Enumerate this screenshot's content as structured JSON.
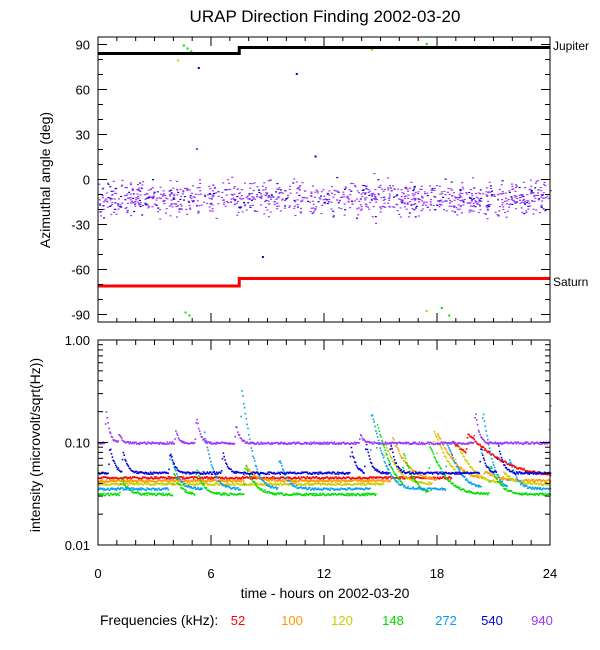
{
  "chart_data": [
    {
      "type": "scatter",
      "title": "URAP Direction Finding  2002-03-20",
      "xlabel": "",
      "ylabel": "Azimuthal angle (deg)",
      "xlim": [
        0,
        24
      ],
      "ylim": [
        -95,
        95
      ],
      "yticks": [
        90,
        60,
        30,
        0,
        -30,
        -60,
        -90
      ],
      "ytick_labels": [
        "90",
        "60",
        "30",
        "0",
        "-30",
        "-60",
        "-90"
      ],
      "reference_lines": [
        {
          "name": "Jupiter",
          "color": "#000000",
          "segments": [
            {
              "x": [
                0,
                7.5
              ],
              "y": 84
            },
            {
              "x": [
                7.5,
                24
              ],
              "y": 88
            }
          ]
        },
        {
          "name": "Saturn",
          "color": "#ff0000",
          "segments": [
            {
              "x": [
                0,
                7.5
              ],
              "y": -71
            },
            {
              "x": [
                7.5,
                24
              ],
              "y": -66
            }
          ]
        }
      ],
      "scatter_band": {
        "series": "940",
        "y_center": -12,
        "y_spread": 8
      },
      "sparse_points": [
        {
          "series": "148",
          "x": 4.5,
          "y": 90
        },
        {
          "series": "148",
          "x": 4.7,
          "y": 88
        },
        {
          "series": "148",
          "x": 4.9,
          "y": 86
        },
        {
          "series": "120",
          "x": 4.2,
          "y": 80
        },
        {
          "series": "540",
          "x": 5.3,
          "y": 75
        },
        {
          "series": "148",
          "x": 17.4,
          "y": 91
        },
        {
          "series": "120",
          "x": 14.5,
          "y": 87
        },
        {
          "series": "148",
          "x": 18.3,
          "y": 89
        },
        {
          "series": "540",
          "x": 10.5,
          "y": 71
        },
        {
          "series": "540",
          "x": 11.5,
          "y": 16
        },
        {
          "series": "940",
          "x": 5.2,
          "y": 21
        },
        {
          "series": "540",
          "x": 8.7,
          "y": -51
        },
        {
          "series": "148",
          "x": 4.8,
          "y": -90
        },
        {
          "series": "148",
          "x": 4.6,
          "y": -88
        },
        {
          "series": "148",
          "x": 18.2,
          "y": -85
        },
        {
          "series": "120",
          "x": 17.4,
          "y": -87
        },
        {
          "series": "148",
          "x": 18.6,
          "y": -90
        }
      ]
    },
    {
      "type": "line",
      "xlabel": "time - hours on 2002-03-20",
      "ylabel": "intensity (microvolt/sqrt(Hz))",
      "xlim": [
        0,
        24
      ],
      "ylim": [
        0.01,
        1.0
      ],
      "yscale": "log",
      "yticks": [
        1.0,
        0.1,
        0.01
      ],
      "ytick_labels": [
        "1.00",
        "0.10",
        "0.01"
      ],
      "xticks": [
        0,
        6,
        12,
        18,
        24
      ],
      "xtick_labels": [
        "0",
        "6",
        "12",
        "18",
        "24"
      ],
      "legend_title": "Frequencies (kHz):",
      "series": [
        {
          "name": "52",
          "color": "#ff0000",
          "base": 0.045,
          "peaks": [
            [
              18.8,
              0.1,
              1.5
            ],
            [
              19.6,
              0.09,
              1.3
            ]
          ]
        },
        {
          "name": "100",
          "color": "#ff9900",
          "base": 0.042,
          "peaks": [
            [
              7.8,
              0.06,
              0.4
            ],
            [
              15.6,
              0.11,
              0.6
            ],
            [
              18.0,
              0.12,
              0.7
            ],
            [
              20.5,
              0.05,
              0.6
            ]
          ]
        },
        {
          "name": "120",
          "color": "#cccc00",
          "base": 0.039,
          "peaks": [
            [
              15.2,
              0.1,
              0.5
            ],
            [
              17.8,
              0.13,
              0.6
            ],
            [
              19.0,
              0.09,
              0.6
            ],
            [
              21.5,
              0.05,
              0.5
            ]
          ]
        },
        {
          "name": "148",
          "color": "#00dd00",
          "base": 0.031,
          "peaks": [
            [
              1.2,
              0.045,
              0.3
            ],
            [
              4.0,
              0.05,
              0.3
            ],
            [
              5.2,
              0.055,
              0.3
            ],
            [
              7.8,
              0.06,
              0.4
            ],
            [
              14.8,
              0.15,
              0.5
            ],
            [
              16.2,
              0.07,
              0.4
            ],
            [
              17.6,
              0.09,
              0.6
            ],
            [
              20.8,
              0.06,
              0.4
            ]
          ]
        },
        {
          "name": "272",
          "color": "#00a0f0",
          "base": 0.035,
          "peaks": [
            [
              3.8,
              0.08,
              0.3
            ],
            [
              5.6,
              0.13,
              0.3
            ],
            [
              7.6,
              0.32,
              0.3
            ],
            [
              9.6,
              0.07,
              0.3
            ],
            [
              14.5,
              0.2,
              0.4
            ],
            [
              18.5,
              0.1,
              0.5
            ],
            [
              20.4,
              0.2,
              0.3
            ],
            [
              21.8,
              0.07,
              0.3
            ]
          ]
        },
        {
          "name": "540",
          "color": "#0000dd",
          "base": 0.05,
          "peaks": [
            [
              0.6,
              0.09,
              0.2
            ],
            [
              1.3,
              0.08,
              0.2
            ],
            [
              3.8,
              0.08,
              0.2
            ],
            [
              6.6,
              0.08,
              0.2
            ],
            [
              13.4,
              0.09,
              0.2
            ],
            [
              14.2,
              0.1,
              0.2
            ],
            [
              15.5,
              0.1,
              0.2
            ],
            [
              20.3,
              0.09,
              0.2
            ],
            [
              21.2,
              0.1,
              0.2
            ]
          ]
        },
        {
          "name": "940",
          "color": "#9933ff",
          "base": 0.098,
          "peaks": [
            [
              0.4,
              0.2,
              0.15
            ],
            [
              1.1,
              0.12,
              0.15
            ],
            [
              4.1,
              0.13,
              0.15
            ],
            [
              5.2,
              0.18,
              0.15
            ],
            [
              7.3,
              0.15,
              0.15
            ],
            [
              13.9,
              0.12,
              0.15
            ],
            [
              20.0,
              0.2,
              0.15
            ],
            [
              24.0,
              0.25,
              0.15
            ]
          ]
        }
      ]
    }
  ]
}
